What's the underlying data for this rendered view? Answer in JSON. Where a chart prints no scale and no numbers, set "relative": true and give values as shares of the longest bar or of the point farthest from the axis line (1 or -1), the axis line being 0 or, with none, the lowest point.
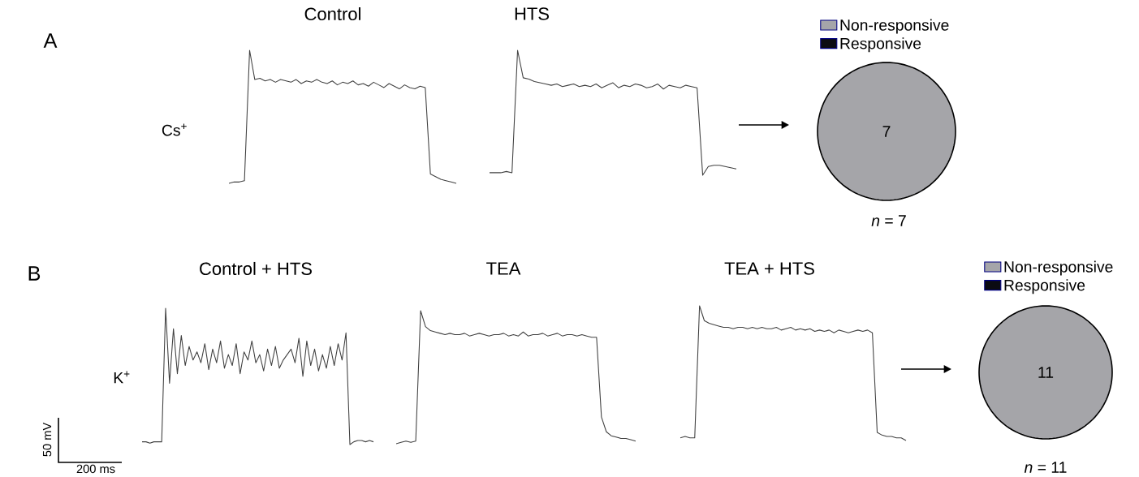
{
  "chart_data": [
    {
      "type": "line",
      "title": "Control",
      "ylabel": "Cs$^{+}$",
      "relative": true,
      "color": "#404040",
      "annotations": [
        "A"
      ],
      "categories": [
        null,
        null,
        null,
        null,
        null,
        null,
        null,
        null,
        null,
        null,
        null,
        null,
        null,
        null,
        null,
        null,
        null,
        null,
        null,
        null,
        null,
        null,
        null,
        null,
        null,
        null,
        null,
        null,
        null,
        null,
        null,
        null,
        null,
        null,
        null,
        null,
        null,
        null,
        null,
        null,
        null,
        null,
        null,
        null,
        null
      ],
      "values": [
        0.0,
        0.01,
        0.01,
        0.02,
        1.0,
        0.78,
        0.79,
        0.77,
        0.78,
        0.76,
        0.78,
        0.77,
        0.76,
        0.78,
        0.75,
        0.77,
        0.76,
        0.78,
        0.76,
        0.75,
        0.77,
        0.74,
        0.76,
        0.75,
        0.77,
        0.74,
        0.75,
        0.73,
        0.76,
        0.74,
        0.72,
        0.75,
        0.73,
        0.71,
        0.74,
        0.72,
        0.71,
        0.73,
        0.72,
        0.07,
        0.05,
        0.03,
        0.02,
        0.01,
        0.0
      ]
    },
    {
      "type": "line",
      "title": "HTS",
      "relative": true,
      "color": "#404040",
      "categories": [
        null,
        null,
        null,
        null,
        null,
        null,
        null,
        null,
        null,
        null,
        null,
        null,
        null,
        null,
        null,
        null,
        null,
        null,
        null,
        null,
        null,
        null,
        null,
        null,
        null,
        null,
        null,
        null,
        null,
        null,
        null,
        null,
        null,
        null,
        null,
        null,
        null,
        null,
        null,
        null,
        null,
        null,
        null,
        null,
        null
      ],
      "values": [
        0.02,
        0.02,
        0.02,
        0.03,
        0.02,
        1.0,
        0.78,
        0.77,
        0.75,
        0.74,
        0.73,
        0.72,
        0.73,
        0.71,
        0.72,
        0.73,
        0.71,
        0.72,
        0.71,
        0.73,
        0.7,
        0.72,
        0.74,
        0.7,
        0.72,
        0.71,
        0.73,
        0.72,
        0.7,
        0.71,
        0.73,
        0.69,
        0.72,
        0.71,
        0.7,
        0.72,
        0.71,
        0.7,
        0.0,
        0.07,
        0.08,
        0.08,
        0.07,
        0.06,
        0.05
      ]
    },
    {
      "type": "pie",
      "categories": [
        "Non-responsive",
        "Responsive"
      ],
      "values": [
        7,
        0
      ],
      "colors": [
        "#a5a5a9",
        "#0b0b12"
      ],
      "legend": "top",
      "value_labels": [
        "7",
        null
      ],
      "annotations": [
        "*n* = 7"
      ]
    },
    {
      "type": "line",
      "title": "Control + HTS",
      "ylabel": "K$^{+}$",
      "relative": true,
      "color": "#404040",
      "annotations": [
        "B",
        "50 mV",
        "200 ms"
      ],
      "categories": [
        null,
        null,
        null,
        null,
        null,
        null,
        null,
        null,
        null,
        null,
        null,
        null,
        null,
        null,
        null,
        null,
        null,
        null,
        null,
        null,
        null,
        null,
        null,
        null,
        null,
        null,
        null,
        null,
        null,
        null,
        null,
        null,
        null,
        null,
        null,
        null,
        null,
        null,
        null,
        null,
        null,
        null,
        null,
        null,
        null,
        null,
        null,
        null,
        null,
        null,
        null,
        null,
        null,
        null,
        null,
        null,
        null,
        null,
        null,
        null
      ],
      "values": [
        0.02,
        0.02,
        0.01,
        0.02,
        0.02,
        0.02,
        1.0,
        0.45,
        0.85,
        0.52,
        0.8,
        0.58,
        0.72,
        0.62,
        0.68,
        0.6,
        0.74,
        0.55,
        0.7,
        0.6,
        0.76,
        0.56,
        0.66,
        0.58,
        0.74,
        0.52,
        0.68,
        0.62,
        0.76,
        0.6,
        0.66,
        0.54,
        0.7,
        0.58,
        0.72,
        0.56,
        0.62,
        0.66,
        0.7,
        0.6,
        0.78,
        0.5,
        0.76,
        0.58,
        0.7,
        0.54,
        0.66,
        0.56,
        0.72,
        0.58,
        0.74,
        0.62,
        0.82,
        0.0,
        0.02,
        0.03,
        0.03,
        0.02,
        0.03,
        0.02
      ]
    },
    {
      "type": "line",
      "title": "TEA",
      "relative": true,
      "color": "#404040",
      "categories": [
        null,
        null,
        null,
        null,
        null,
        null,
        null,
        null,
        null,
        null,
        null,
        null,
        null,
        null,
        null,
        null,
        null,
        null,
        null,
        null,
        null,
        null,
        null,
        null,
        null,
        null,
        null,
        null,
        null,
        null,
        null,
        null,
        null,
        null,
        null,
        null,
        null,
        null,
        null,
        null,
        null,
        null,
        null,
        null,
        null,
        null,
        null,
        null,
        null,
        null
      ],
      "values": [
        0.0,
        0.01,
        0.02,
        0.01,
        0.02,
        1.0,
        0.88,
        0.85,
        0.84,
        0.83,
        0.82,
        0.83,
        0.82,
        0.82,
        0.83,
        0.81,
        0.82,
        0.83,
        0.82,
        0.81,
        0.82,
        0.82,
        0.83,
        0.81,
        0.82,
        0.81,
        0.84,
        0.81,
        0.82,
        0.82,
        0.83,
        0.81,
        0.82,
        0.83,
        0.81,
        0.82,
        0.82,
        0.81,
        0.82,
        0.81,
        0.8,
        0.8,
        0.2,
        0.09,
        0.06,
        0.05,
        0.04,
        0.04,
        0.03,
        0.02
      ]
    },
    {
      "type": "line",
      "title": "TEA + HTS",
      "relative": true,
      "color": "#404040",
      "categories": [
        null,
        null,
        null,
        null,
        null,
        null,
        null,
        null,
        null,
        null,
        null,
        null,
        null,
        null,
        null,
        null,
        null,
        null,
        null,
        null,
        null,
        null,
        null,
        null,
        null,
        null,
        null,
        null,
        null,
        null,
        null,
        null,
        null,
        null,
        null,
        null,
        null,
        null,
        null,
        null,
        null,
        null,
        null,
        null,
        null,
        null,
        null,
        null
      ],
      "values": [
        0.02,
        0.03,
        0.02,
        0.02,
        1.0,
        0.89,
        0.87,
        0.86,
        0.85,
        0.84,
        0.84,
        0.83,
        0.84,
        0.84,
        0.83,
        0.84,
        0.83,
        0.84,
        0.83,
        0.83,
        0.84,
        0.82,
        0.83,
        0.84,
        0.82,
        0.83,
        0.82,
        0.83,
        0.81,
        0.82,
        0.81,
        0.82,
        0.8,
        0.82,
        0.81,
        0.8,
        0.81,
        0.82,
        0.81,
        0.82,
        0.8,
        0.06,
        0.04,
        0.03,
        0.03,
        0.02,
        0.02,
        0.0
      ]
    },
    {
      "type": "pie",
      "categories": [
        "Non-responsive",
        "Responsive"
      ],
      "values": [
        11,
        0
      ],
      "colors": [
        "#a5a5a9",
        "#0b0b12"
      ],
      "legend": "top",
      "value_labels": [
        "11",
        null
      ],
      "annotations": [
        "*n* = 11"
      ]
    }
  ]
}
